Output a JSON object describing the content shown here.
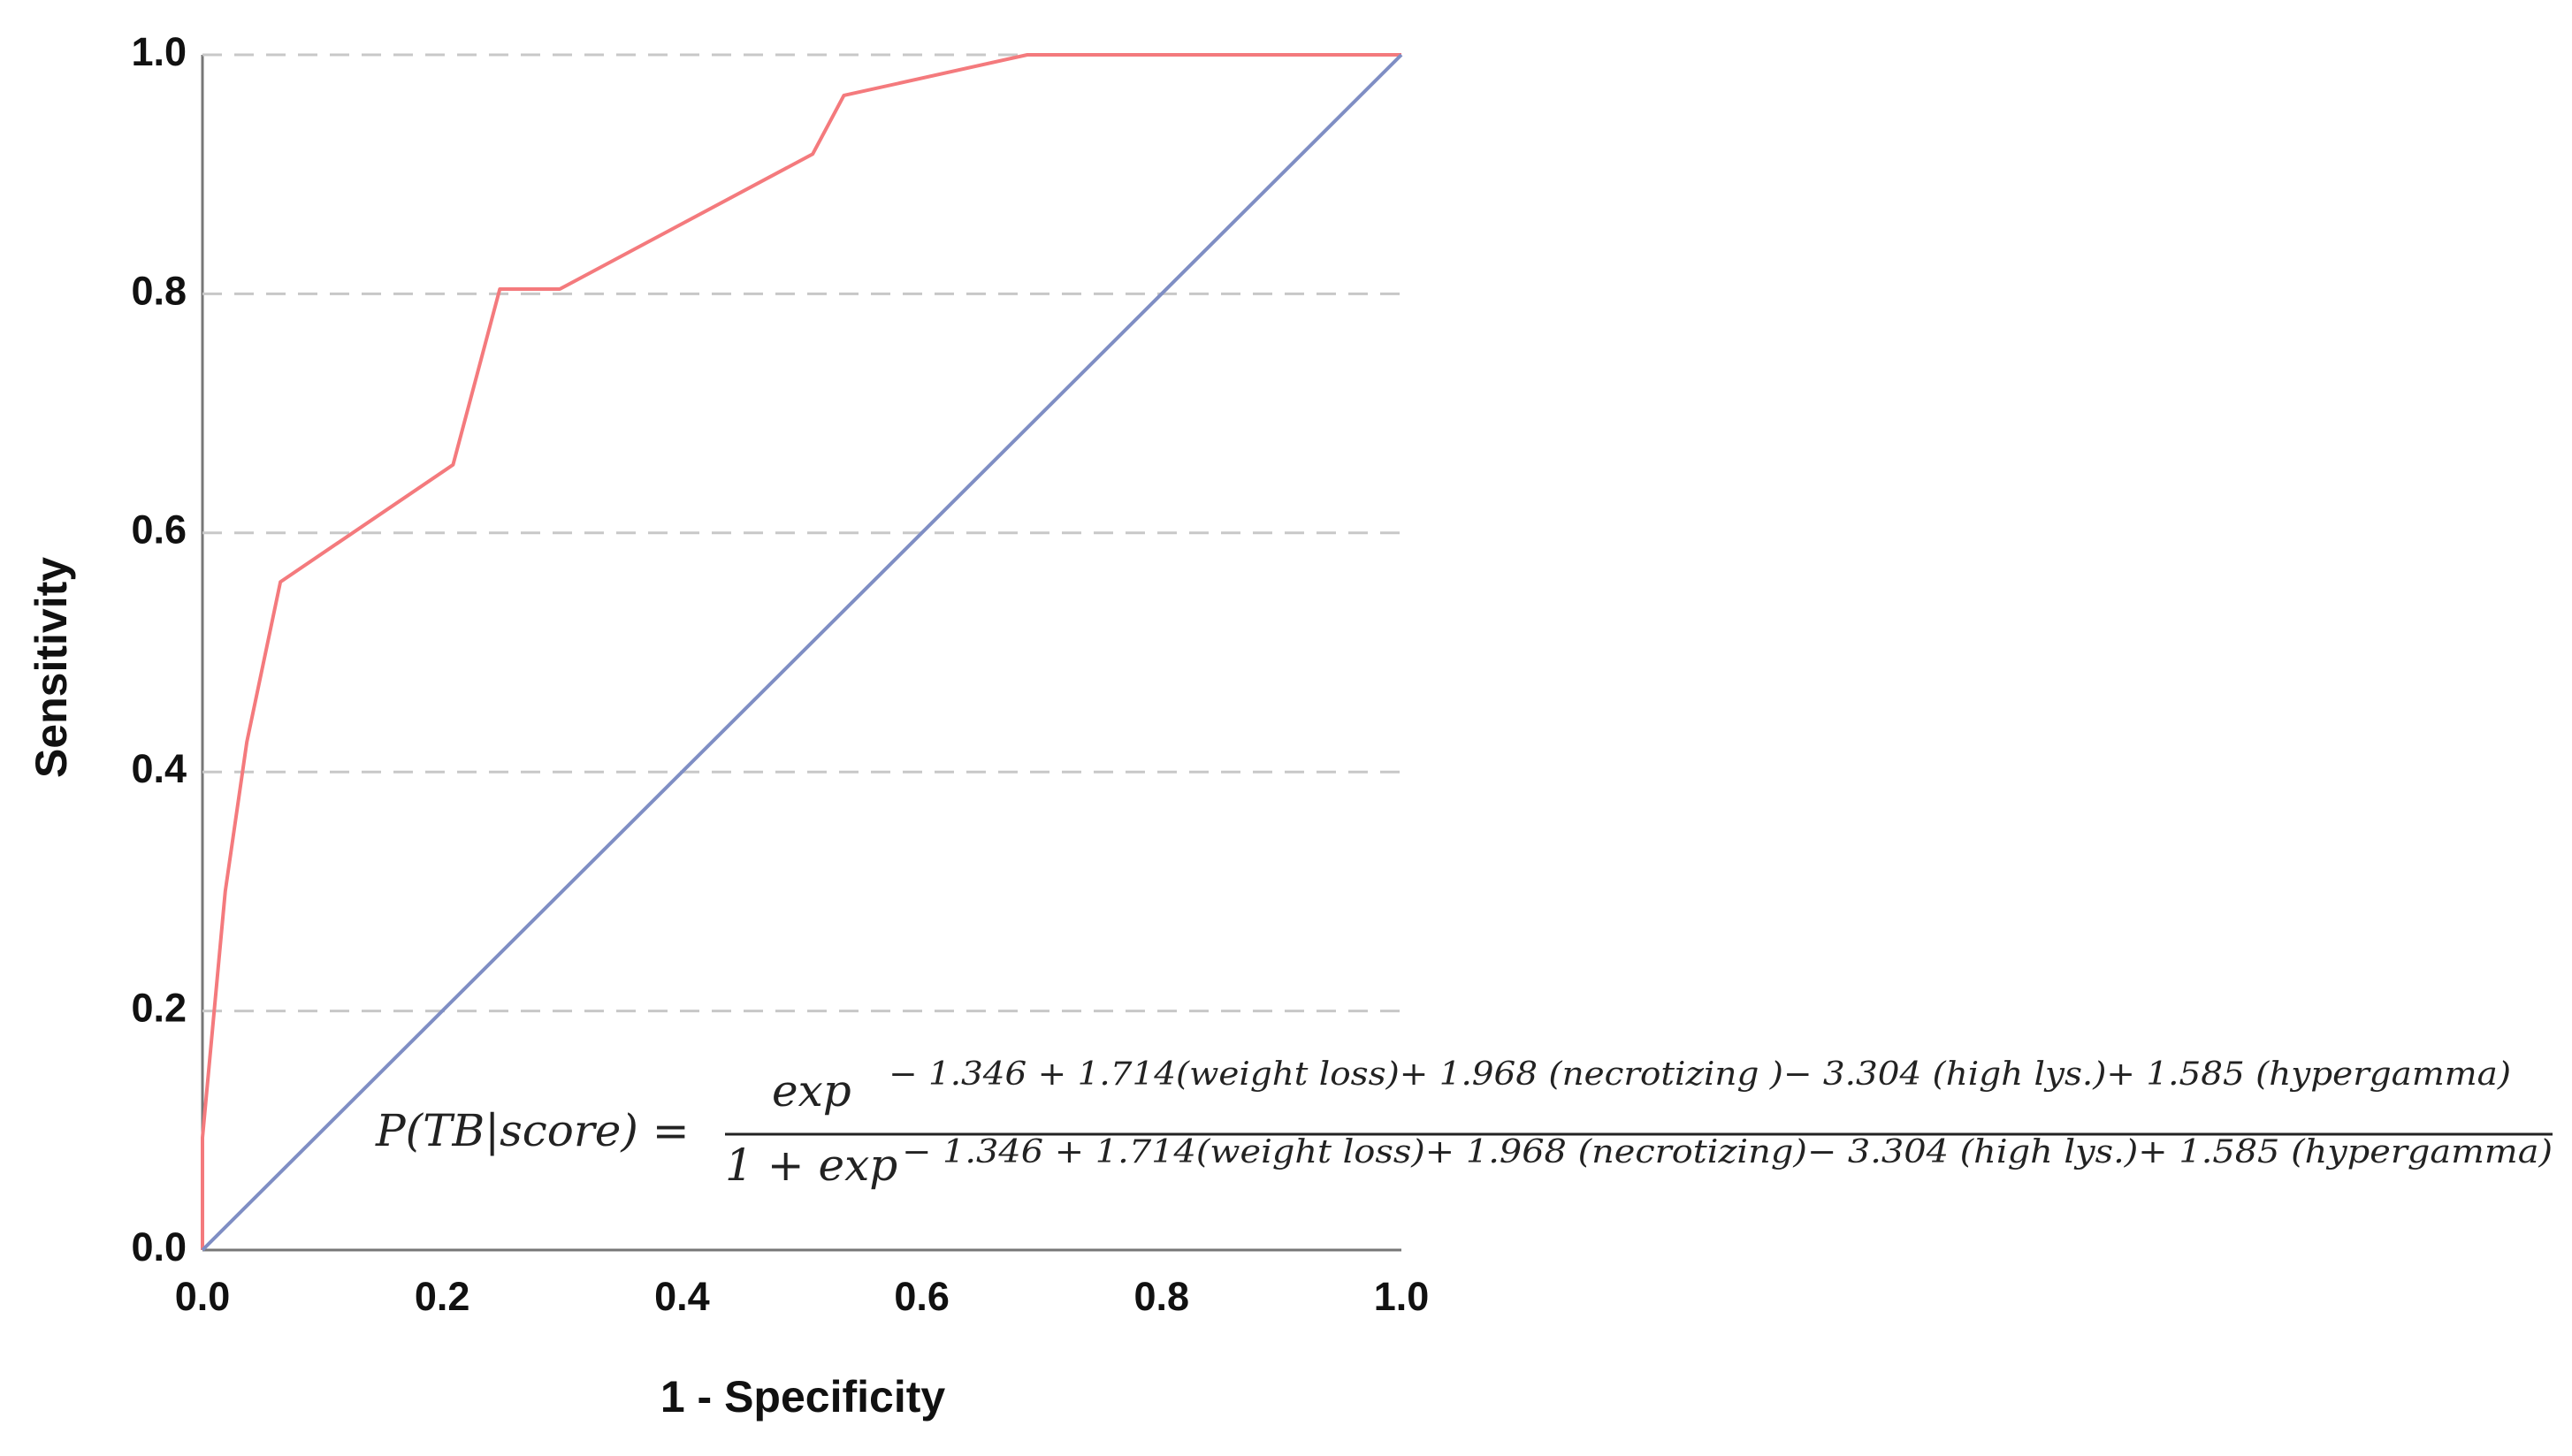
{
  "chart_data": {
    "type": "line",
    "x_label": "1 - Specificity",
    "y_label": "Sensitivity",
    "xlim": [
      0,
      1
    ],
    "ylim": [
      0,
      1
    ],
    "xticks": [
      {
        "value": 0,
        "label": "0.0"
      },
      0.2,
      0.4,
      0.6,
      0.8,
      {
        "value": 1,
        "label": "1.0"
      }
    ],
    "yticks": [
      {
        "value": 0,
        "label": "0.0"
      },
      0.2,
      0.4,
      0.6,
      0.8,
      {
        "value": 1,
        "label": "1.0"
      }
    ],
    "grid": true,
    "series": [
      {
        "color": "#f47a7d",
        "x": [
          0,
          0,
          0.019,
          0.037,
          0.065,
          0.209,
          0.248,
          0.298,
          0.509,
          0.535,
          0.688,
          1.0
        ],
        "values": [
          0,
          0.094,
          0.3,
          0.425,
          0.559,
          0.657,
          0.804,
          0.804,
          0.917,
          0.966,
          1.0,
          1.0
        ]
      },
      {
        "color": "#7f8ec4",
        "x": [
          0,
          1
        ],
        "values": [
          0,
          1
        ]
      }
    ],
    "annotation": {
      "lhs": "P(TB|score) =",
      "numerator": "exp",
      "numerator_exponent": "− 1.346 + 1.714(weight loss)+ 1.968 (necrotizing )− 3.304 (high lys.)+ 1.585 (hypergamma)",
      "denominator": "1 + exp",
      "denominator_exponent": "− 1.346 + 1.714(weight loss)+ 1.968 (necrotizing)− 3.304 (high lys.)+ 1.585 (hypergamma)"
    }
  }
}
